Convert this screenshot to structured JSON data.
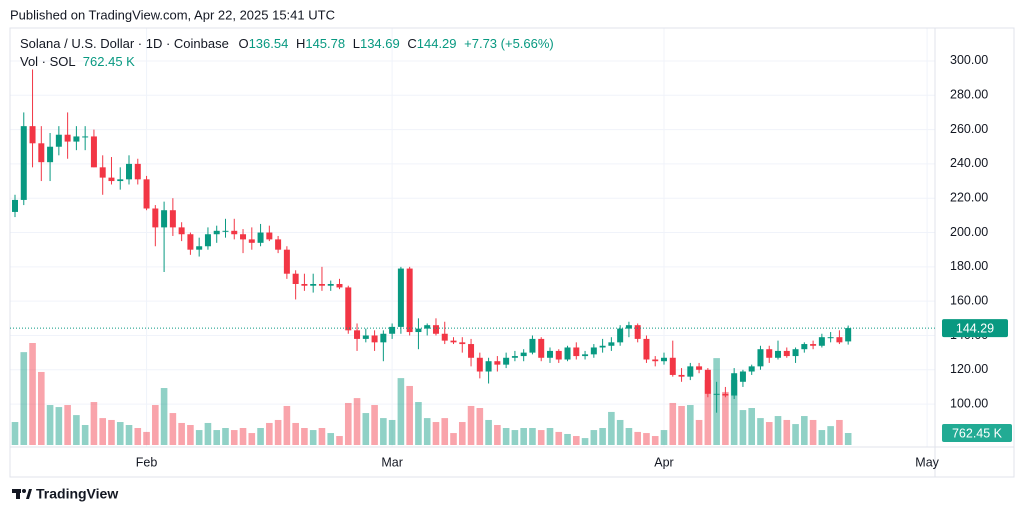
{
  "chart_data": {
    "type": "candlestick",
    "published": "Published on TradingView.com, Apr 22, 2025 15:41 UTC",
    "title": "Solana / U.S. Dollar · 1D · Coinbase",
    "ohlc_labels": [
      "O",
      "H",
      "L",
      "C"
    ],
    "change": "+7.73 (+5.66%)",
    "brand": "TradingView",
    "up_color": "#089981",
    "down_color": "#f23645",
    "grid": true,
    "open": [
      212,
      219,
      262,
      252,
      241,
      250,
      257,
      253,
      256,
      256,
      238,
      232,
      230,
      231,
      240,
      231,
      214,
      203,
      213,
      203,
      199,
      190,
      192,
      199,
      201,
      201,
      199,
      196,
      194,
      200,
      196,
      190,
      176,
      170,
      169,
      170,
      169,
      170,
      168,
      143,
      138,
      140,
      136,
      141,
      145,
      179,
      142,
      144,
      146,
      141,
      137,
      136,
      135,
      127,
      119,
      125,
      123,
      127,
      128,
      130,
      138,
      127,
      131,
      126,
      133,
      128,
      129,
      133,
      134,
      136,
      144,
      146,
      138,
      126,
      125,
      127,
      117,
      116,
      122,
      120,
      106,
      106,
      105,
      113,
      119,
      122,
      132,
      127,
      131,
      128,
      132,
      135,
      134,
      139,
      139,
      136.54
    ],
    "high": [
      222,
      270,
      295,
      262,
      258,
      262,
      270,
      262,
      262,
      260,
      245,
      244,
      238,
      245,
      243,
      233,
      216,
      218,
      220,
      206,
      200,
      197,
      203,
      204,
      208,
      208,
      202,
      203,
      205,
      204,
      198,
      192,
      178,
      176,
      176,
      180,
      172,
      173,
      169,
      147,
      144,
      143,
      143,
      147,
      180,
      180,
      150,
      147,
      150,
      148,
      139,
      139,
      138,
      130,
      127,
      128,
      130,
      131,
      132,
      140,
      139,
      133,
      132,
      134,
      136,
      131,
      135,
      138,
      139,
      146,
      148,
      147,
      140,
      128,
      130,
      137,
      121,
      124,
      124,
      121,
      113,
      110,
      121,
      120,
      123,
      134,
      134,
      137,
      133,
      133,
      136,
      137,
      141,
      142,
      143,
      145.78
    ],
    "low": [
      209,
      216,
      238,
      230,
      230,
      245,
      243,
      248,
      248,
      238,
      222,
      228,
      225,
      228,
      228,
      213,
      192,
      177,
      198,
      195,
      187,
      186,
      190,
      194,
      197,
      196,
      188,
      190,
      192,
      195,
      188,
      173,
      161,
      166,
      165,
      166,
      166,
      167,
      141,
      131,
      136,
      131,
      125,
      138,
      141,
      140,
      132,
      140,
      140,
      135,
      135,
      130,
      122,
      115,
      112,
      119,
      121,
      125,
      125,
      129,
      125,
      124,
      124,
      125,
      126,
      126,
      127,
      130,
      131,
      134,
      139,
      136,
      124,
      122,
      123,
      116,
      113,
      114,
      118,
      104,
      95,
      104,
      103,
      110,
      117,
      120,
      124,
      126,
      127,
      124,
      130,
      132,
      133,
      136,
      135,
      134.69
    ],
    "close": [
      219,
      262,
      252,
      241,
      250,
      257,
      253,
      256,
      256,
      238,
      232,
      230,
      231,
      240,
      231,
      214,
      203,
      213,
      203,
      199,
      190,
      192,
      199,
      201,
      201,
      199,
      196,
      194,
      200,
      196,
      190,
      176,
      170,
      169,
      170,
      169,
      170,
      168,
      143,
      138,
      140,
      136,
      141,
      145,
      179,
      142,
      144,
      146,
      141,
      137,
      136,
      135,
      127,
      119,
      125,
      123,
      127,
      128,
      130,
      138,
      127,
      131,
      126,
      133,
      128,
      129,
      133,
      134,
      136,
      144,
      146,
      138,
      126,
      125,
      127,
      117,
      116,
      122,
      120,
      106,
      106,
      105,
      118,
      119,
      122,
      132,
      127,
      131,
      128,
      132,
      135,
      134,
      139,
      139,
      136,
      144.29
    ],
    "volume": {
      "name": "Vol · SOL",
      "values": [
        1460,
        5900,
        6480,
        4640,
        2540,
        2410,
        2540,
        1900,
        1270,
        2730,
        1710,
        1590,
        1460,
        1270,
        1080,
        830,
        2540,
        3620,
        2030,
        1400,
        1270,
        950,
        1400,
        950,
        1080,
        950,
        1080,
        760,
        1080,
        1400,
        1590,
        2480,
        1400,
        1080,
        950,
        1080,
        760,
        570,
        2670,
        2980,
        2030,
        2540,
        1710,
        1590,
        4250,
        3750,
        2730,
        1710,
        1460,
        1710,
        760,
        1460,
        2480,
        2350,
        1590,
        1270,
        1080,
        950,
        1080,
        1080,
        950,
        1080,
        830,
        700,
        570,
        440,
        950,
        1080,
        2100,
        1590,
        1080,
        830,
        760,
        570,
        950,
        2670,
        2480,
        2540,
        1590,
        4130,
        5520,
        3370,
        4130,
        2220,
        2350,
        1710,
        1460,
        1840,
        1590,
        1330,
        1840,
        1590,
        950,
        1200,
        1590,
        762.45
      ]
    },
    "last_volume_label": "762.45 K",
    "xlim": [
      -0.57,
      104.9
    ],
    "xticks": [
      {
        "value": 15,
        "label": "Feb"
      },
      {
        "value": 43,
        "label": "Mar"
      },
      {
        "value": 74,
        "label": "Apr"
      },
      {
        "value": 104,
        "label": "May"
      }
    ],
    "ylim": [
      75,
      319.2
    ],
    "yticks": [
      {
        "value": 100,
        "label": "100.00"
      },
      {
        "value": 120,
        "label": "120.00"
      },
      {
        "value": 140,
        "label": "140.00"
      },
      {
        "value": 160,
        "label": "160.00"
      },
      {
        "value": 180,
        "label": "180.00"
      },
      {
        "value": 200,
        "label": "200.00"
      },
      {
        "value": 220,
        "label": "220.00"
      },
      {
        "value": 240,
        "label": "240.00"
      },
      {
        "value": 260,
        "label": "260.00"
      },
      {
        "value": 280,
        "label": "280.00"
      },
      {
        "value": 300,
        "label": "300.00"
      }
    ]
  }
}
